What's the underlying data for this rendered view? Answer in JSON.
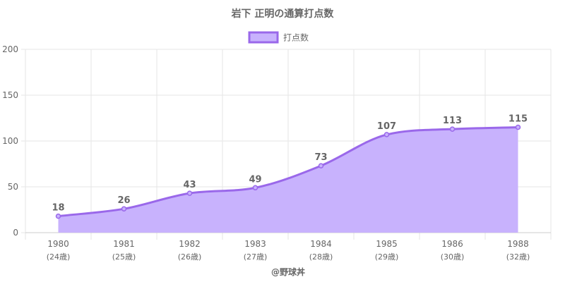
{
  "chart_data": {
    "type": "area",
    "title": "岩下 正明の通算打点数",
    "legend": {
      "position": "top",
      "label": "打点数"
    },
    "categories": [
      "1980",
      "1981",
      "1982",
      "1983",
      "1984",
      "1985",
      "1986",
      "1988"
    ],
    "sublabels": [
      "(24歳)",
      "(25歳)",
      "(26歳)",
      "(27歳)",
      "(28歳)",
      "(29歳)",
      "(30歳)",
      "(32歳)"
    ],
    "series": [
      {
        "name": "打点数",
        "values": [
          18,
          26,
          43,
          49,
          73,
          107,
          113,
          115
        ]
      }
    ],
    "ylim": [
      0,
      200
    ],
    "yticks": [
      0,
      50,
      100,
      150,
      200
    ],
    "grid": true,
    "colors": {
      "fill": "#c8b2fd",
      "line": "#9a68ea",
      "grid": "#e6e6e6",
      "text": "#666666"
    }
  },
  "credit": "@野球丼"
}
